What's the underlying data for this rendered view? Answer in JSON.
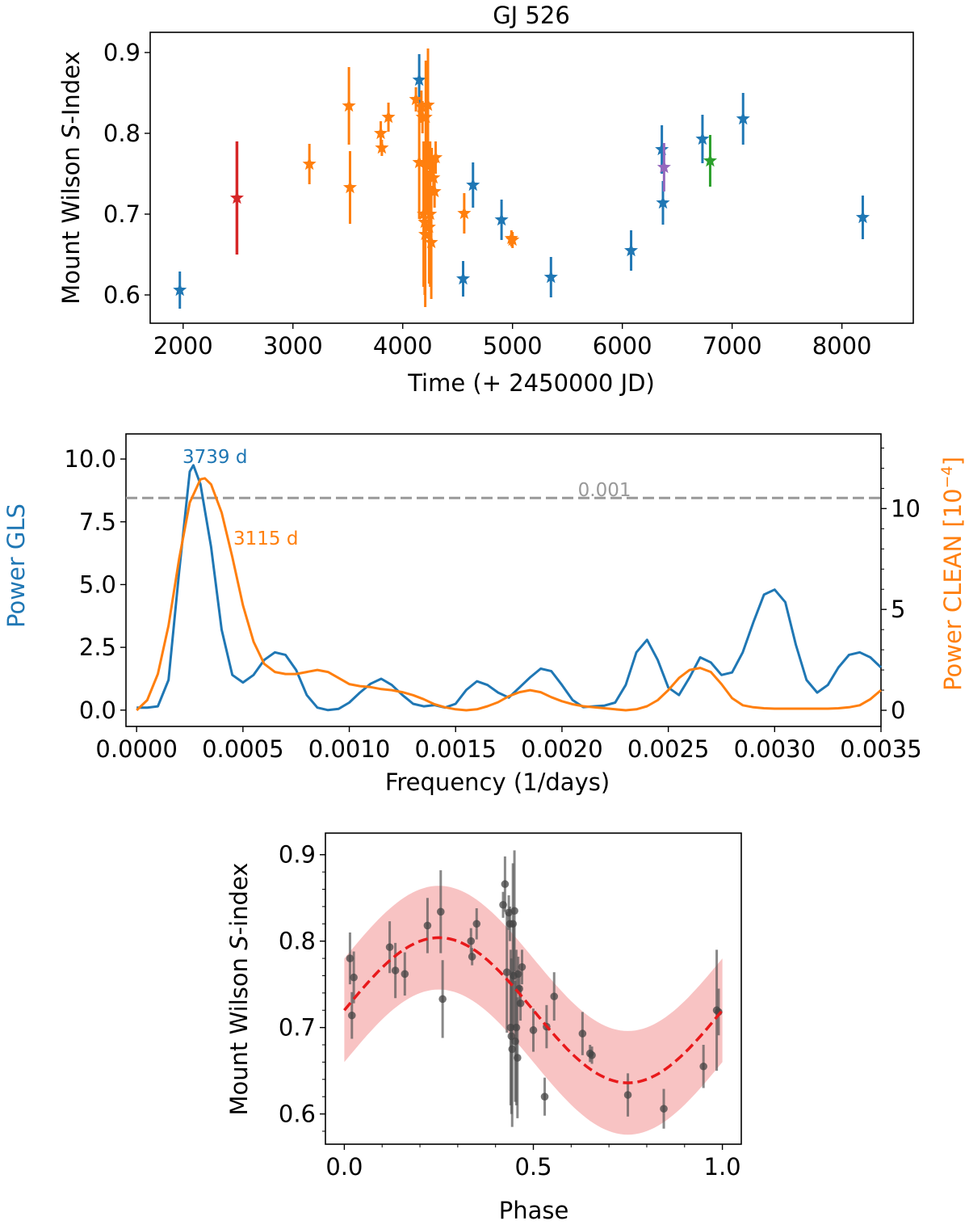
{
  "colors": {
    "blue": "#1f77b4",
    "orange": "#ff7f0e",
    "red": "#d62728",
    "purple": "#9467bd",
    "green": "#2ca02c",
    "gray": "#999999",
    "black": "#222222",
    "band": "#f7b9b9",
    "fit": "#e8191b"
  },
  "chart_data": [
    {
      "type": "scatter",
      "title": "GJ 526",
      "xlabel": "Time (+ 2450000 JD)",
      "ylabel_parts": [
        "Mount Wilson ",
        "S",
        "-Index"
      ],
      "xlim": [
        1700,
        8650
      ],
      "ylim": [
        0.565,
        0.925
      ],
      "xticks": [
        2000,
        3000,
        4000,
        5000,
        6000,
        7000,
        8000
      ],
      "yticks": [
        0.6,
        0.7,
        0.8,
        0.9
      ],
      "marker": "star",
      "series": [
        {
          "color": "blue",
          "points": [
            {
              "x": 1970,
              "y": 0.606,
              "err": 0.023
            },
            {
              "x": 4150,
              "y": 0.866,
              "err": 0.032
            },
            {
              "x": 4550,
              "y": 0.62,
              "err": 0.022
            },
            {
              "x": 4640,
              "y": 0.736,
              "err": 0.028
            },
            {
              "x": 4900,
              "y": 0.693,
              "err": 0.025
            },
            {
              "x": 5350,
              "y": 0.622,
              "err": 0.025
            },
            {
              "x": 6080,
              "y": 0.655,
              "err": 0.025
            },
            {
              "x": 6360,
              "y": 0.78,
              "err": 0.03
            },
            {
              "x": 6370,
              "y": 0.714,
              "err": 0.027
            },
            {
              "x": 6730,
              "y": 0.793,
              "err": 0.03
            },
            {
              "x": 7100,
              "y": 0.818,
              "err": 0.032
            },
            {
              "x": 8190,
              "y": 0.696,
              "err": 0.027
            }
          ]
        },
        {
          "color": "orange",
          "points": [
            {
              "x": 3150,
              "y": 0.762,
              "err": 0.025
            },
            {
              "x": 3510,
              "y": 0.834,
              "err": 0.048
            },
            {
              "x": 3520,
              "y": 0.733,
              "err": 0.045
            },
            {
              "x": 3800,
              "y": 0.8,
              "err": 0.015
            },
            {
              "x": 3810,
              "y": 0.782,
              "err": 0.01
            },
            {
              "x": 3870,
              "y": 0.82,
              "err": 0.018
            },
            {
              "x": 4120,
              "y": 0.842,
              "err": 0.015
            },
            {
              "x": 4150,
              "y": 0.764,
              "err": 0.07
            },
            {
              "x": 4170,
              "y": 0.833,
              "err": 0.02
            },
            {
              "x": 4180,
              "y": 0.82,
              "err": 0.02
            },
            {
              "x": 4190,
              "y": 0.7,
              "err": 0.09
            },
            {
              "x": 4200,
              "y": 0.69,
              "err": 0.09
            },
            {
              "x": 4205,
              "y": 0.675,
              "err": 0.09
            },
            {
              "x": 4210,
              "y": 0.82,
              "err": 0.07
            },
            {
              "x": 4220,
              "y": 0.76,
              "err": 0.06
            },
            {
              "x": 4230,
              "y": 0.835,
              "err": 0.07
            },
            {
              "x": 4240,
              "y": 0.684,
              "err": 0.07
            },
            {
              "x": 4250,
              "y": 0.7,
              "err": 0.09
            },
            {
              "x": 4260,
              "y": 0.665,
              "err": 0.07
            },
            {
              "x": 4265,
              "y": 0.762,
              "err": 0.02
            },
            {
              "x": 4280,
              "y": 0.745,
              "err": 0.02
            },
            {
              "x": 4290,
              "y": 0.728,
              "err": 0.02
            },
            {
              "x": 4300,
              "y": 0.77,
              "err": 0.02
            },
            {
              "x": 4560,
              "y": 0.701,
              "err": 0.025
            },
            {
              "x": 4990,
              "y": 0.67,
              "err": 0.01
            },
            {
              "x": 5000,
              "y": 0.668,
              "err": 0.01
            }
          ]
        },
        {
          "color": "red",
          "points": [
            {
              "x": 2490,
              "y": 0.72,
              "err": 0.07
            }
          ]
        },
        {
          "color": "purple",
          "points": [
            {
              "x": 6380,
              "y": 0.758,
              "err": 0.03
            }
          ]
        },
        {
          "color": "green",
          "points": [
            {
              "x": 6800,
              "y": 0.766,
              "err": 0.032
            }
          ]
        }
      ]
    },
    {
      "type": "line",
      "xlabel": "Frequency (1/days)",
      "ylabel_left": "Power GLS",
      "ylabel_right": "Power CLEAN [10",
      "ylabel_right_sup": "−4",
      "ylabel_right_end": "]",
      "xlim": [
        -5e-05,
        0.0035
      ],
      "ylim_left": [
        -0.65,
        11.0
      ],
      "ylim_right": [
        -0.8,
        13.7
      ],
      "xticks": [
        "0.0000",
        "0.0005",
        "0.0010",
        "0.0015",
        "0.0020",
        "0.0025",
        "0.0030",
        "0.0035"
      ],
      "xtick_values": [
        0,
        0.0005,
        0.001,
        0.0015,
        0.002,
        0.0025,
        0.003,
        0.0035
      ],
      "yticks_left": [
        "0.0",
        "2.5",
        "5.0",
        "7.5",
        "10.0"
      ],
      "ytick_values_left": [
        0,
        2.5,
        5,
        7.5,
        10
      ],
      "yticks_right": [
        "0",
        "5",
        "10"
      ],
      "ytick_values_right": [
        0,
        5,
        10
      ],
      "threshold": {
        "value": 8.45,
        "label": "0.001"
      },
      "annotations": [
        {
          "text": "3739 d",
          "color": "blue",
          "x": 0.000267,
          "y": 9.75
        },
        {
          "text": "3115 d",
          "color": "orange",
          "x": 0.000321,
          "y": 11.5
        }
      ],
      "series": [
        {
          "color": "blue",
          "x": [
            0,
            5e-05,
            0.0001,
            0.00015,
            0.0002,
            0.00025,
            0.000267,
            0.0003,
            0.00035,
            0.0004,
            0.00045,
            0.0005,
            0.00055,
            0.0006,
            0.00065,
            0.0007,
            0.00075,
            0.0008,
            0.00085,
            0.0009,
            0.00095,
            0.001,
            0.00105,
            0.0011,
            0.00115,
            0.0012,
            0.00125,
            0.0013,
            0.00135,
            0.0014,
            0.00145,
            0.0015,
            0.00155,
            0.0016,
            0.00165,
            0.0017,
            0.00175,
            0.0018,
            0.00185,
            0.0019,
            0.00195,
            0.002,
            0.00205,
            0.0021,
            0.00215,
            0.0022,
            0.00225,
            0.0023,
            0.00235,
            0.0024,
            0.00245,
            0.0025,
            0.00255,
            0.0026,
            0.00265,
            0.0027,
            0.00275,
            0.0028,
            0.00285,
            0.0029,
            0.00295,
            0.003,
            0.00305,
            0.0031,
            0.00315,
            0.0032,
            0.00325,
            0.0033,
            0.00335,
            0.0034,
            0.00345,
            0.0035
          ],
          "y": [
            0.1,
            0.1,
            0.15,
            1.2,
            5.5,
            9.5,
            9.75,
            9.0,
            6.5,
            3.2,
            1.4,
            1.1,
            1.4,
            2.0,
            2.3,
            2.2,
            1.6,
            0.6,
            0.1,
            0.0,
            0.05,
            0.3,
            0.7,
            1.05,
            1.25,
            1.0,
            0.6,
            0.25,
            0.15,
            0.2,
            0.1,
            0.25,
            0.8,
            1.15,
            1.0,
            0.7,
            0.5,
            0.9,
            1.3,
            1.65,
            1.55,
            1.0,
            0.4,
            0.12,
            0.15,
            0.18,
            0.3,
            1.0,
            2.3,
            2.8,
            2.0,
            0.9,
            0.6,
            1.3,
            2.1,
            1.9,
            1.4,
            1.5,
            2.3,
            3.5,
            4.6,
            4.8,
            4.3,
            2.6,
            1.2,
            0.7,
            1.0,
            1.7,
            2.2,
            2.3,
            2.1,
            1.7
          ]
        },
        {
          "color": "orange",
          "x": [
            0,
            5e-05,
            0.0001,
            0.00015,
            0.0002,
            0.00025,
            0.0003,
            0.000321,
            0.00035,
            0.0004,
            0.00045,
            0.0005,
            0.00055,
            0.0006,
            0.00065,
            0.0007,
            0.00075,
            0.0008,
            0.00085,
            0.0009,
            0.00095,
            0.001,
            0.00105,
            0.0011,
            0.00115,
            0.0012,
            0.00125,
            0.0013,
            0.00135,
            0.0014,
            0.00145,
            0.0015,
            0.00155,
            0.0016,
            0.00165,
            0.0017,
            0.00175,
            0.0018,
            0.00185,
            0.0019,
            0.00195,
            0.002,
            0.00205,
            0.0021,
            0.00215,
            0.0022,
            0.00225,
            0.0023,
            0.00235,
            0.0024,
            0.00245,
            0.0025,
            0.00255,
            0.0026,
            0.00265,
            0.0027,
            0.00275,
            0.0028,
            0.00285,
            0.0029,
            0.00295,
            0.003,
            0.00305,
            0.0031,
            0.00315,
            0.0032,
            0.00325,
            0.0033,
            0.00335,
            0.0034,
            0.00345,
            0.0035
          ],
          "y": [
            0.0,
            0.5,
            1.8,
            4.2,
            7.5,
            10.3,
            11.45,
            11.5,
            11.2,
            9.8,
            7.6,
            5.2,
            3.4,
            2.3,
            1.9,
            1.8,
            1.8,
            1.9,
            2.0,
            1.9,
            1.6,
            1.3,
            1.2,
            1.15,
            1.05,
            1.0,
            0.9,
            0.75,
            0.55,
            0.3,
            0.15,
            0.05,
            0.0,
            0.05,
            0.2,
            0.4,
            0.7,
            0.9,
            1.0,
            0.9,
            0.65,
            0.45,
            0.3,
            0.2,
            0.15,
            0.1,
            0.05,
            0.0,
            0.05,
            0.2,
            0.5,
            1.0,
            1.6,
            2.0,
            2.1,
            1.9,
            1.3,
            0.6,
            0.25,
            0.15,
            0.1,
            0.08,
            0.08,
            0.08,
            0.08,
            0.08,
            0.08,
            0.1,
            0.15,
            0.25,
            0.55,
            1.0
          ]
        }
      ]
    },
    {
      "type": "scatter",
      "xlabel": "Phase",
      "ylabel_parts": [
        "Mount Wilson ",
        "S",
        "-index"
      ],
      "xlim": [
        -0.05,
        1.05
      ],
      "ylim": [
        0.565,
        0.925
      ],
      "xticks": [
        "0.0",
        "0.5",
        "1.0"
      ],
      "xtick_values": [
        0,
        0.5,
        1.0
      ],
      "yticks": [
        "0.6",
        "0.7",
        "0.8",
        "0.9"
      ],
      "ytick_values": [
        0.6,
        0.7,
        0.8,
        0.9
      ],
      "fit": {
        "mean": 0.72,
        "amplitude": 0.084,
        "band_halfwidth": 0.06
      },
      "points": [
        {
          "x": 0.015,
          "y": 0.78,
          "err": 0.03
        },
        {
          "x": 0.02,
          "y": 0.714,
          "err": 0.027
        },
        {
          "x": 0.025,
          "y": 0.758,
          "err": 0.03
        },
        {
          "x": 0.12,
          "y": 0.793,
          "err": 0.03
        },
        {
          "x": 0.135,
          "y": 0.766,
          "err": 0.032
        },
        {
          "x": 0.16,
          "y": 0.762,
          "err": 0.025
        },
        {
          "x": 0.22,
          "y": 0.818,
          "err": 0.032
        },
        {
          "x": 0.255,
          "y": 0.834,
          "err": 0.048
        },
        {
          "x": 0.26,
          "y": 0.733,
          "err": 0.045
        },
        {
          "x": 0.335,
          "y": 0.8,
          "err": 0.015
        },
        {
          "x": 0.338,
          "y": 0.782,
          "err": 0.01
        },
        {
          "x": 0.35,
          "y": 0.82,
          "err": 0.018
        },
        {
          "x": 0.42,
          "y": 0.842,
          "err": 0.015
        },
        {
          "x": 0.425,
          "y": 0.866,
          "err": 0.032
        },
        {
          "x": 0.43,
          "y": 0.764,
          "err": 0.07
        },
        {
          "x": 0.435,
          "y": 0.833,
          "err": 0.02
        },
        {
          "x": 0.438,
          "y": 0.82,
          "err": 0.02
        },
        {
          "x": 0.44,
          "y": 0.7,
          "err": 0.09
        },
        {
          "x": 0.442,
          "y": 0.69,
          "err": 0.09
        },
        {
          "x": 0.444,
          "y": 0.675,
          "err": 0.09
        },
        {
          "x": 0.446,
          "y": 0.82,
          "err": 0.07
        },
        {
          "x": 0.448,
          "y": 0.76,
          "err": 0.06
        },
        {
          "x": 0.45,
          "y": 0.835,
          "err": 0.07
        },
        {
          "x": 0.452,
          "y": 0.684,
          "err": 0.07
        },
        {
          "x": 0.455,
          "y": 0.7,
          "err": 0.09
        },
        {
          "x": 0.458,
          "y": 0.665,
          "err": 0.07
        },
        {
          "x": 0.46,
          "y": 0.762,
          "err": 0.02
        },
        {
          "x": 0.463,
          "y": 0.745,
          "err": 0.02
        },
        {
          "x": 0.466,
          "y": 0.728,
          "err": 0.02
        },
        {
          "x": 0.47,
          "y": 0.77,
          "err": 0.02
        },
        {
          "x": 0.5,
          "y": 0.697,
          "err": 0.025
        },
        {
          "x": 0.53,
          "y": 0.62,
          "err": 0.022
        },
        {
          "x": 0.535,
          "y": 0.701,
          "err": 0.025
        },
        {
          "x": 0.555,
          "y": 0.736,
          "err": 0.028
        },
        {
          "x": 0.63,
          "y": 0.693,
          "err": 0.025
        },
        {
          "x": 0.65,
          "y": 0.67,
          "err": 0.01
        },
        {
          "x": 0.655,
          "y": 0.668,
          "err": 0.01
        },
        {
          "x": 0.75,
          "y": 0.622,
          "err": 0.025
        },
        {
          "x": 0.845,
          "y": 0.606,
          "err": 0.023
        },
        {
          "x": 0.95,
          "y": 0.655,
          "err": 0.025
        },
        {
          "x": 0.985,
          "y": 0.72,
          "err": 0.07
        },
        {
          "x": 0.99,
          "y": 0.718,
          "err": 0.027
        }
      ]
    }
  ]
}
